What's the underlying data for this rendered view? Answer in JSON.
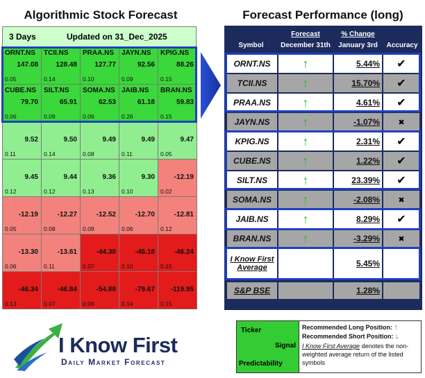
{
  "left": {
    "title": "Algorithmic Stock Forecast",
    "period": "3 Days",
    "updated": "Updated on 31_Dec_2025",
    "rows": [
      [
        {
          "ticker": "ORNT.NS",
          "signal": "147.08",
          "predictability": "0.05",
          "color": "#3ad83a"
        },
        {
          "ticker": "TCII.NS",
          "signal": "128.48",
          "predictability": "0.14",
          "color": "#3ad83a"
        },
        {
          "ticker": "PRAA.NS",
          "signal": "127.77",
          "predictability": "0.10",
          "color": "#3ad83a"
        },
        {
          "ticker": "JAYN.NS",
          "signal": "92.56",
          "predictability": "0.09",
          "color": "#3ad83a"
        },
        {
          "ticker": "KPIG.NS",
          "signal": "88.26",
          "predictability": "0.15",
          "color": "#3ad83a"
        }
      ],
      [
        {
          "ticker": "CUBE.NS",
          "signal": "79.70",
          "predictability": "0.06",
          "color": "#3ad83a"
        },
        {
          "ticker": "SILT.NS",
          "signal": "65.91",
          "predictability": "0.09",
          "color": "#3ad83a"
        },
        {
          "ticker": "SOMA.NS",
          "signal": "62.53",
          "predictability": "0.06",
          "color": "#3ad83a"
        },
        {
          "ticker": "JAIB.NS",
          "signal": "61.18",
          "predictability": "0.26",
          "color": "#3ad83a"
        },
        {
          "ticker": "BRAN.NS",
          "signal": "59.83",
          "predictability": "0.15",
          "color": "#3ad83a"
        }
      ],
      [
        {
          "signal": "9.52",
          "predictability": "0.11",
          "color": "#90ee90"
        },
        {
          "signal": "9.50",
          "predictability": "0.14",
          "color": "#90ee90"
        },
        {
          "signal": "9.49",
          "predictability": "0.08",
          "color": "#90ee90"
        },
        {
          "signal": "9.49",
          "predictability": "0.11",
          "color": "#90ee90"
        },
        {
          "signal": "9.47",
          "predictability": "0.05",
          "color": "#90ee90"
        }
      ],
      [
        {
          "signal": "9.45",
          "predictability": "0.12",
          "color": "#90ee90"
        },
        {
          "signal": "9.44",
          "predictability": "0.12",
          "color": "#90ee90"
        },
        {
          "signal": "9.36",
          "predictability": "0.13",
          "color": "#90ee90"
        },
        {
          "signal": "9.30",
          "predictability": "0.10",
          "color": "#90ee90"
        },
        {
          "signal": "-12.19",
          "predictability": "0.02",
          "color": "#f3827c"
        }
      ],
      [
        {
          "signal": "-12.19",
          "predictability": "0.05",
          "color": "#f3827c"
        },
        {
          "signal": "-12.27",
          "predictability": "0.08",
          "color": "#f3827c"
        },
        {
          "signal": "-12.52",
          "predictability": "0.09",
          "color": "#f3827c"
        },
        {
          "signal": "-12.70",
          "predictability": "0.06",
          "color": "#f3827c"
        },
        {
          "signal": "-12.81",
          "predictability": "0.12",
          "color": "#f3827c"
        }
      ],
      [
        {
          "signal": "-13.30",
          "predictability": "0.06",
          "color": "#f3827c"
        },
        {
          "signal": "-13.61",
          "predictability": "0.11",
          "color": "#f3827c"
        },
        {
          "signal": "-44.30",
          "predictability": "0.07",
          "color": "#e31b1b"
        },
        {
          "signal": "-46.18",
          "predictability": "0.10",
          "color": "#e31b1b"
        },
        {
          "signal": "-46.24",
          "predictability": "0.15",
          "color": "#e31b1b"
        }
      ],
      [
        {
          "signal": "-46.34",
          "predictability": "0.13",
          "color": "#e31b1b"
        },
        {
          "signal": "-46.84",
          "predictability": "0.07",
          "color": "#e31b1b"
        },
        {
          "signal": "-54.88",
          "predictability": "0.08",
          "color": "#e31b1b"
        },
        {
          "signal": "-79.67",
          "predictability": "0.14",
          "color": "#e31b1b"
        },
        {
          "signal": "-119.95",
          "predictability": "0.15",
          "color": "#e31b1b"
        }
      ]
    ]
  },
  "right": {
    "title": "Forecast Performance (long)",
    "headers": {
      "symbol": "Symbol",
      "forecast": "Forecast",
      "forecast_date": "December 31th",
      "change": "% Change",
      "change_date": "January 3rd",
      "accuracy": "Accuracy"
    },
    "rows": [
      {
        "symbol": "ORNT.NS",
        "forecast": "↑",
        "change": "5.44%",
        "accuracy": "✔"
      },
      {
        "symbol": "TCII.NS",
        "forecast": "↑",
        "change": "15.70%",
        "accuracy": "✔"
      },
      {
        "symbol": "PRAA.NS",
        "forecast": "↑",
        "change": "4.61%",
        "accuracy": "✔"
      },
      {
        "symbol": "JAYN.NS",
        "forecast": "↑",
        "change": "-1.07%",
        "accuracy": "✖"
      },
      {
        "symbol": "KPIG.NS",
        "forecast": "↑",
        "change": "2.31%",
        "accuracy": "✔"
      },
      {
        "symbol": "CUBE.NS",
        "forecast": "↑",
        "change": "1.22%",
        "accuracy": "✔"
      },
      {
        "symbol": "SILT.NS",
        "forecast": "↑",
        "change": "23.39%",
        "accuracy": "✔"
      },
      {
        "symbol": "SOMA.NS",
        "forecast": "↑",
        "change": "-2.08%",
        "accuracy": "✖"
      },
      {
        "symbol": "JAIB.NS",
        "forecast": "↑",
        "change": "8.29%",
        "accuracy": "✔"
      },
      {
        "symbol": "BRAN.NS",
        "forecast": "↑",
        "change": "-3.29%",
        "accuracy": "✖"
      }
    ],
    "average": {
      "label": "I Know First Average",
      "change": "5.45%"
    },
    "benchmark": {
      "label": "S&P BSE",
      "change": "1.28%"
    }
  },
  "logo": {
    "name": "I Know First",
    "tagline": "Daily Market Forecast"
  },
  "legend": {
    "ticker": "Ticker",
    "signal": "Signal",
    "predictability": "Predictability",
    "long": "Recommended Long Position:",
    "long_arrow": "↑",
    "short": "Recommended Short Position:",
    "short_arrow": "↓",
    "note_term": "I Know First Average",
    "note": "denotes the non-weighted average return of the listed symbols"
  }
}
